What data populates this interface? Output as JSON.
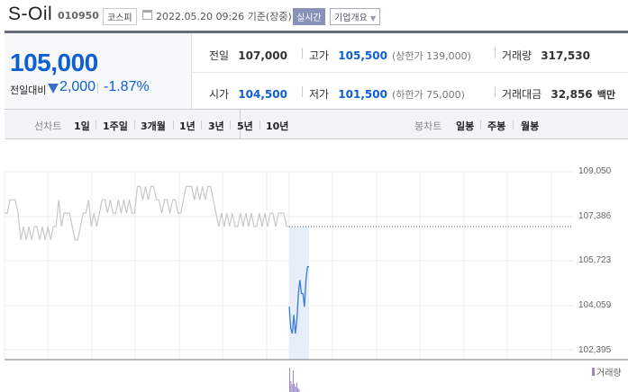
{
  "header": {
    "title": "S-Oil",
    "code": "010950",
    "market": "코스피",
    "datetime": "2022.05.20 09:26",
    "basis": "기준(장중)",
    "realtime_label": "실시간",
    "corp_info_label": "기업개요",
    "calendar_icon": "calendar-icon"
  },
  "quote": {
    "price": "105,000",
    "change_label": "전일대비",
    "change_direction": "down",
    "change_value": "2,000",
    "change_pct": "-1.87%"
  },
  "stats": {
    "prev_close": {
      "label": "전일",
      "value": "107,000"
    },
    "high": {
      "label": "고가",
      "value": "105,500",
      "limit": "(상한가 139,000)"
    },
    "volume": {
      "label": "거래량",
      "value": "317,530"
    },
    "open": {
      "label": "시가",
      "value": "104,500"
    },
    "low": {
      "label": "저가",
      "value": "101,500",
      "limit": "(하한가 75,000)"
    },
    "amount": {
      "label": "거래대금",
      "value": "32,856",
      "unit": "백만"
    }
  },
  "tabs": {
    "line_label": "선차트",
    "line": [
      "1일",
      "1주일",
      "3개월",
      "1년",
      "3년",
      "5년",
      "10년"
    ],
    "active": "1일",
    "candle_label": "봉차트",
    "candle": [
      "일봉",
      "주봉",
      "월봉"
    ]
  },
  "colors": {
    "accent": "#0d5fd3",
    "prev_line": "#c8c8cc",
    "today_line": "#3a7bd5",
    "fill": "#e6eef9",
    "volume": "#9b87c9"
  },
  "chart_data": {
    "type": "line",
    "y_ticks": [
      "109,050",
      "107,386",
      "105,723",
      "104,059",
      "102,395"
    ],
    "ylim": [
      102395,
      109050
    ],
    "reference_line": 107000,
    "volume_legend": "거래량",
    "grid": true,
    "series": [
      {
        "values": [
          107500,
          107500,
          108000,
          108000,
          108000,
          107500,
          106500,
          107000,
          106500,
          107000,
          106500,
          107000,
          107000,
          106500,
          107000,
          106500,
          107000,
          106500,
          107000,
          107000,
          108000,
          107000,
          107500,
          107500,
          107500,
          107000,
          106500,
          106500,
          107000,
          107500,
          107500,
          108000,
          107000,
          107500,
          107000,
          107500,
          108000,
          108000,
          107500,
          108000,
          107500,
          107500,
          108000,
          107500,
          108000,
          107500,
          108000,
          107500,
          107500,
          108500,
          108500,
          108000,
          108500,
          108000,
          108500,
          108500,
          108000,
          108000,
          107500,
          108000,
          108000,
          107500,
          108000,
          108000,
          107500,
          107500,
          108000,
          108500,
          108500,
          108500,
          108000,
          108500,
          108000,
          108500,
          108000,
          108500,
          108500,
          108000,
          107500,
          107000,
          107500,
          107000,
          107500,
          107000,
          107500,
          107000,
          107000,
          107500,
          107000,
          107500,
          107000,
          107500,
          107000,
          107000,
          107500,
          107000,
          107500,
          107000,
          107500,
          107500,
          107000,
          107500,
          107500,
          107500,
          107000,
          107000
        ]
      },
      {
        "values": [
          104000,
          103200,
          103000,
          103700,
          103000,
          103500,
          104500,
          105000,
          104500,
          104500,
          104000,
          105000,
          105500,
          105500
        ]
      }
    ],
    "volume": [
      0.9,
      0.4,
      0.3,
      0.8,
      0.3,
      0.2,
      0.35,
      0.15,
      0.1
    ]
  }
}
